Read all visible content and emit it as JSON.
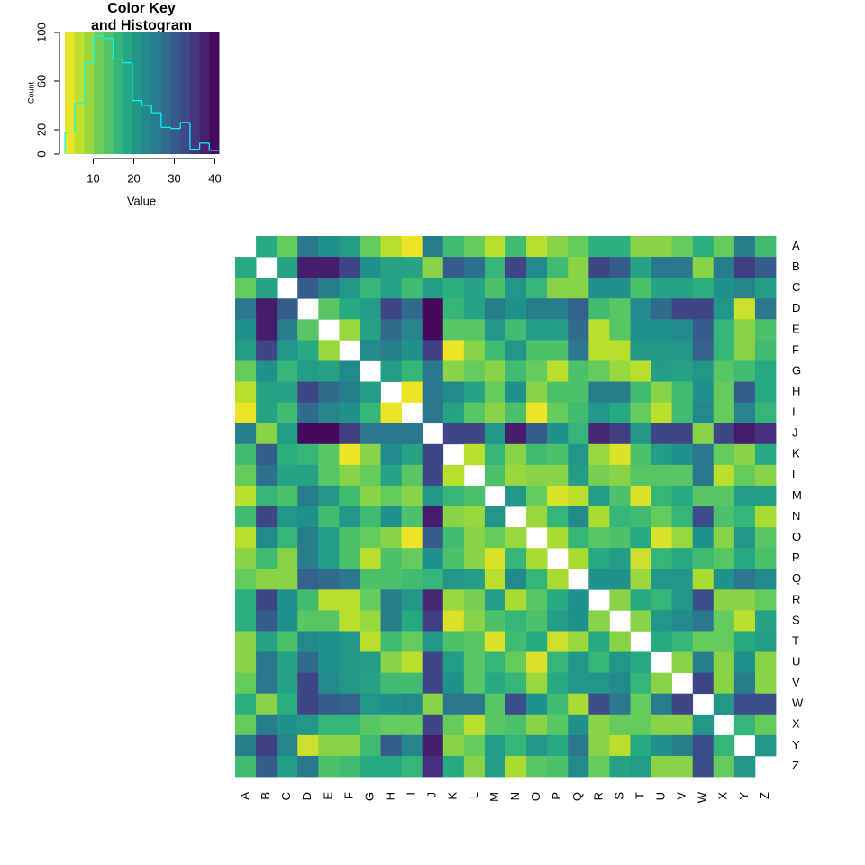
{
  "chart_data": [
    {
      "type": "histogram",
      "title": "Color Key",
      "subtitle": "and Histogram",
      "xlabel": "Value",
      "ylabel": "Count",
      "bins": [
        3,
        5.375,
        7.75,
        10.125,
        12.5,
        14.875,
        17.25,
        19.625,
        22,
        24.375,
        26.75,
        29.125,
        31.5,
        33.875,
        36.25,
        38.625,
        41
      ],
      "counts": [
        18,
        42,
        75,
        97,
        95,
        78,
        75,
        44,
        40,
        34,
        22,
        21,
        26,
        4,
        9,
        3
      ],
      "xlim": [
        3,
        41
      ],
      "xticks": [
        10,
        20,
        30,
        40
      ],
      "ylim": [
        0,
        100
      ],
      "yticks": [
        0,
        20,
        60,
        100
      ],
      "color": "#00ffff",
      "colormap": "viridis",
      "reverse": true
    },
    {
      "type": "heatmap",
      "rows": [
        "A",
        "B",
        "C",
        "D",
        "E",
        "F",
        "G",
        "H",
        "I",
        "J",
        "K",
        "L",
        "M",
        "N",
        "O",
        "P",
        "Q",
        "R",
        "S",
        "T",
        "U",
        "V",
        "W",
        "X",
        "Y",
        "Z"
      ],
      "columns": [
        "A",
        "B",
        "C",
        "D",
        "E",
        "F",
        "G",
        "H",
        "I",
        "J",
        "K",
        "L",
        "M",
        "N",
        "O",
        "P",
        "Q",
        "R",
        "S",
        "T",
        "U",
        "V",
        "W",
        "X",
        "Y",
        "Z"
      ],
      "colormap": "viridis",
      "reverse": true,
      "zlim": [
        3,
        41
      ],
      "values": [
        [
          null,
          18,
          12,
          26,
          22,
          20,
          12,
          7,
          4,
          25,
          15,
          12,
          7,
          15,
          7,
          10,
          12,
          17,
          17,
          10,
          10,
          12,
          17,
          12,
          25,
          15
        ],
        [
          18,
          null,
          19,
          38,
          38,
          33,
          22,
          19,
          19,
          10,
          30,
          27,
          16,
          33,
          23,
          15,
          10,
          33,
          30,
          19,
          26,
          26,
          10,
          25,
          34,
          30
        ],
        [
          12,
          19,
          null,
          30,
          25,
          21,
          16,
          19,
          15,
          20,
          17,
          19,
          14,
          21,
          16,
          10,
          10,
          22,
          22,
          14,
          19,
          19,
          17,
          22,
          24,
          20
        ],
        [
          26,
          38,
          30,
          null,
          13,
          18,
          20,
          33,
          28,
          40,
          16,
          19,
          25,
          22,
          25,
          25,
          29,
          15,
          13,
          23,
          28,
          33,
          33,
          21,
          6,
          26
        ],
        [
          22,
          38,
          25,
          13,
          null,
          9,
          19,
          28,
          24,
          40,
          13,
          13,
          21,
          15,
          20,
          20,
          28,
          7,
          13,
          22,
          22,
          23,
          30,
          16,
          10,
          14
        ],
        [
          20,
          33,
          21,
          18,
          9,
          null,
          23,
          25,
          22,
          34,
          4,
          10,
          15,
          21,
          14,
          14,
          26,
          7,
          7,
          21,
          21,
          21,
          29,
          16,
          10,
          15
        ],
        [
          12,
          22,
          16,
          20,
          19,
          23,
          null,
          20,
          16,
          26,
          10,
          12,
          10,
          15,
          12,
          7,
          14,
          12,
          9,
          7,
          20,
          19,
          21,
          13,
          15,
          18
        ],
        [
          7,
          19,
          19,
          33,
          28,
          25,
          20,
          null,
          4,
          26,
          23,
          19,
          12,
          22,
          10,
          14,
          14,
          25,
          25,
          15,
          10,
          15,
          22,
          12,
          30,
          18
        ],
        [
          4,
          19,
          15,
          28,
          24,
          22,
          16,
          4,
          null,
          26,
          19,
          13,
          10,
          14,
          4,
          12,
          15,
          21,
          18,
          12,
          7,
          15,
          23,
          12,
          24,
          16
        ],
        [
          25,
          10,
          20,
          40,
          40,
          34,
          26,
          26,
          26,
          null,
          33,
          33,
          21,
          38,
          30,
          22,
          16,
          37,
          34,
          21,
          33,
          33,
          10,
          33,
          38,
          36
        ],
        [
          15,
          30,
          17,
          16,
          13,
          4,
          10,
          23,
          19,
          33,
          null,
          7,
          16,
          10,
          15,
          14,
          21,
          9,
          5,
          14,
          20,
          22,
          26,
          12,
          10,
          18
        ],
        [
          12,
          27,
          19,
          19,
          13,
          10,
          12,
          19,
          13,
          33,
          7,
          null,
          14,
          9,
          10,
          10,
          20,
          11,
          10,
          13,
          13,
          13,
          26,
          7,
          12,
          10
        ],
        [
          7,
          16,
          14,
          25,
          21,
          15,
          10,
          12,
          10,
          21,
          16,
          14,
          null,
          21,
          12,
          5,
          7,
          20,
          14,
          5,
          16,
          18,
          13,
          13,
          20,
          20
        ],
        [
          15,
          33,
          21,
          22,
          15,
          21,
          15,
          22,
          14,
          38,
          10,
          9,
          21,
          null,
          9,
          16,
          23,
          8,
          16,
          15,
          12,
          16,
          32,
          14,
          16,
          8
        ],
        [
          7,
          23,
          16,
          25,
          20,
          14,
          12,
          10,
          4,
          30,
          15,
          10,
          12,
          9,
          null,
          8,
          16,
          13,
          14,
          18,
          5,
          9,
          22,
          10,
          21,
          13
        ],
        [
          10,
          15,
          10,
          25,
          20,
          14,
          7,
          14,
          12,
          22,
          14,
          10,
          5,
          16,
          8,
          null,
          8,
          18,
          20,
          6,
          16,
          18,
          15,
          13,
          18,
          14
        ],
        [
          12,
          10,
          10,
          29,
          28,
          26,
          14,
          14,
          15,
          16,
          21,
          20,
          7,
          23,
          16,
          8,
          null,
          22,
          22,
          9,
          21,
          21,
          8,
          22,
          26,
          23
        ],
        [
          17,
          33,
          22,
          15,
          7,
          7,
          12,
          25,
          21,
          37,
          9,
          11,
          20,
          8,
          13,
          18,
          22,
          null,
          10,
          18,
          16,
          21,
          32,
          10,
          10,
          12
        ],
        [
          17,
          30,
          22,
          13,
          13,
          7,
          9,
          25,
          18,
          34,
          5,
          10,
          14,
          16,
          14,
          20,
          22,
          10,
          null,
          10,
          21,
          23,
          26,
          12,
          7,
          19
        ],
        [
          10,
          19,
          14,
          23,
          22,
          21,
          7,
          15,
          12,
          21,
          14,
          13,
          5,
          15,
          18,
          6,
          9,
          18,
          10,
          null,
          18,
          16,
          12,
          12,
          18,
          20
        ],
        [
          10,
          26,
          19,
          28,
          22,
          21,
          20,
          10,
          7,
          33,
          20,
          13,
          16,
          12,
          5,
          16,
          21,
          16,
          21,
          18,
          null,
          10,
          25,
          10,
          22,
          10
        ],
        [
          12,
          26,
          19,
          33,
          23,
          21,
          19,
          15,
          15,
          33,
          22,
          13,
          18,
          16,
          9,
          18,
          21,
          21,
          23,
          16,
          10,
          null,
          33,
          10,
          25,
          10
        ],
        [
          17,
          10,
          17,
          33,
          30,
          29,
          21,
          22,
          23,
          10,
          26,
          26,
          13,
          32,
          22,
          15,
          8,
          32,
          26,
          12,
          25,
          33,
          null,
          21,
          32,
          32
        ],
        [
          12,
          25,
          22,
          21,
          16,
          16,
          13,
          12,
          12,
          33,
          12,
          7,
          13,
          14,
          10,
          13,
          22,
          10,
          12,
          12,
          10,
          10,
          21,
          null,
          16,
          12
        ],
        [
          25,
          34,
          24,
          6,
          10,
          10,
          15,
          30,
          24,
          38,
          10,
          12,
          20,
          16,
          21,
          18,
          26,
          10,
          7,
          18,
          22,
          25,
          32,
          16,
          null,
          21
        ],
        [
          15,
          30,
          20,
          26,
          14,
          15,
          18,
          18,
          16,
          36,
          18,
          10,
          20,
          8,
          13,
          14,
          23,
          12,
          19,
          20,
          10,
          10,
          32,
          12,
          21,
          null
        ]
      ]
    }
  ]
}
